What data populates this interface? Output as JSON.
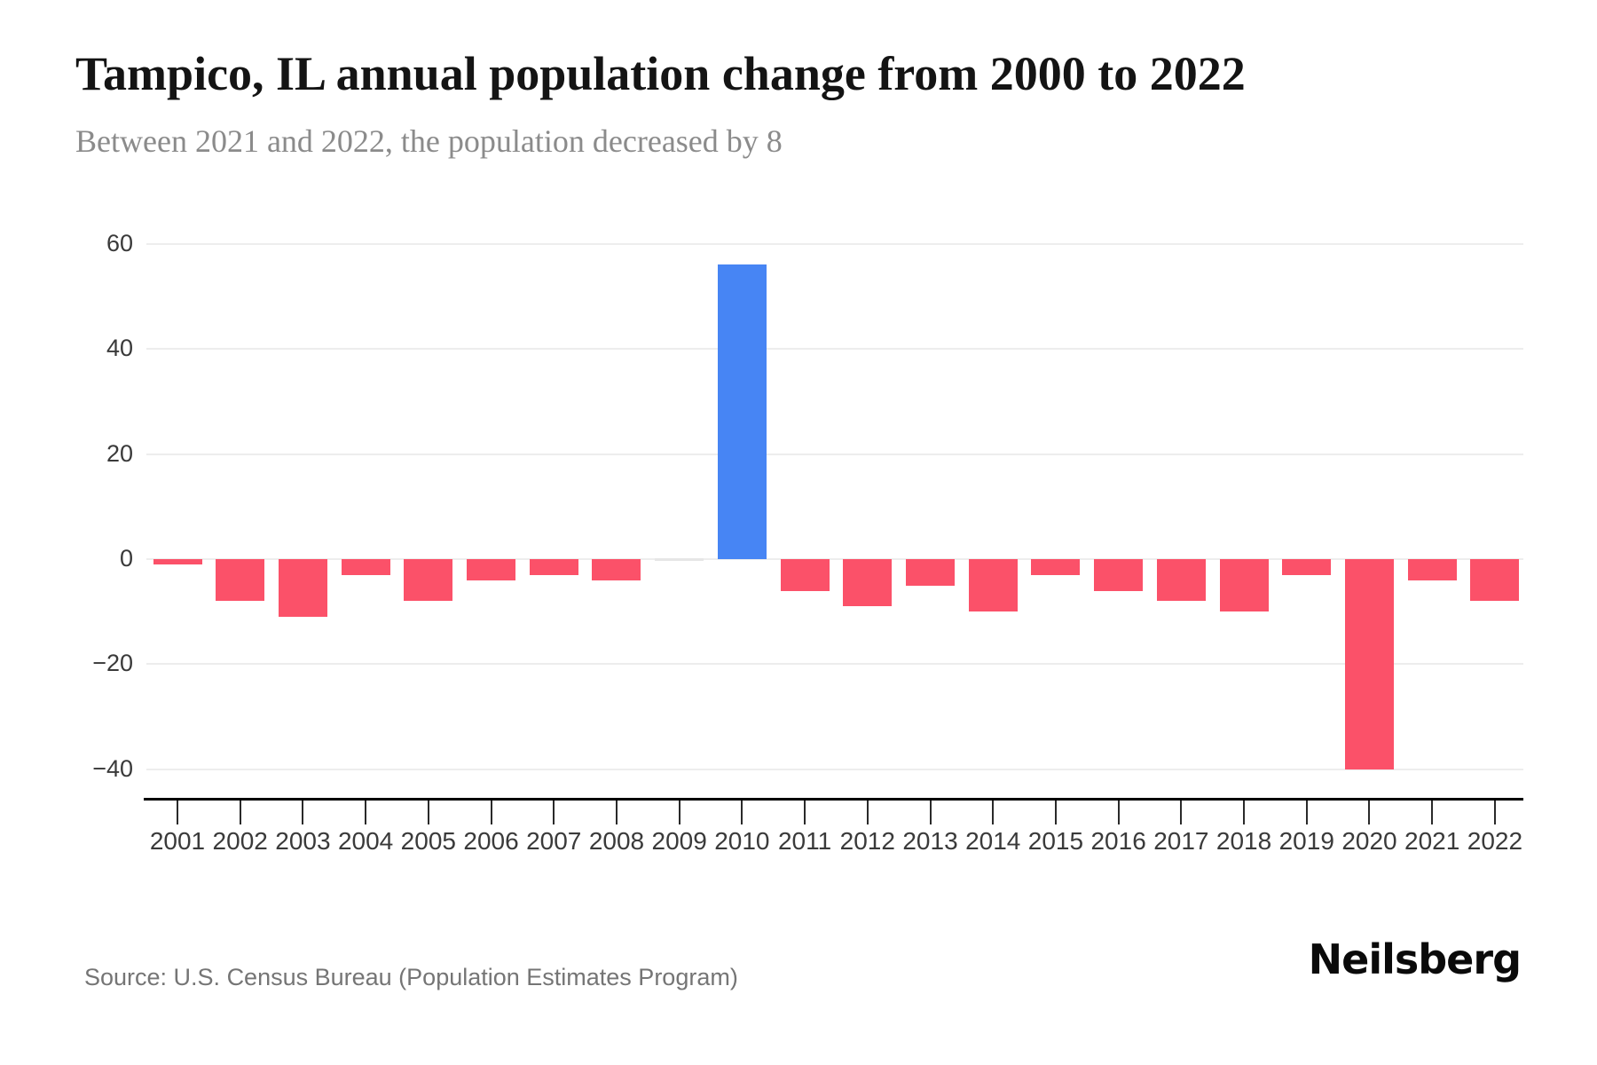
{
  "header": {
    "title": "Tampico, IL annual population change from 2000 to 2022",
    "subtitle": "Between 2021 and 2022, the population decreased by 8"
  },
  "footer": {
    "source": "Source: U.S. Census Bureau (Population Estimates Program)",
    "brand": "Neilsberg"
  },
  "chart_data": {
    "type": "bar",
    "title": "Tampico, IL annual population change from 2000 to 2022",
    "xlabel": "",
    "ylabel": "",
    "categories": [
      "2001",
      "2002",
      "2003",
      "2004",
      "2005",
      "2006",
      "2007",
      "2008",
      "2009",
      "2010",
      "2011",
      "2012",
      "2013",
      "2014",
      "2015",
      "2016",
      "2017",
      "2018",
      "2019",
      "2020",
      "2021",
      "2022"
    ],
    "values": [
      -1,
      -8,
      -11,
      -3,
      -8,
      -4,
      -3,
      -4,
      0,
      56,
      -6,
      -9,
      -5,
      -10,
      -3,
      -6,
      -8,
      -10,
      -3,
      -40,
      -4,
      -8
    ],
    "ylim": [
      -46,
      67
    ],
    "yticks": [
      {
        "value": 60,
        "label": "60"
      },
      {
        "value": 40,
        "label": "40"
      },
      {
        "value": 20,
        "label": "20"
      },
      {
        "value": 0,
        "label": "0"
      },
      {
        "value": -20,
        "label": "−20"
      },
      {
        "value": -40,
        "label": "−40"
      }
    ],
    "grid": true,
    "legend_position": "none",
    "colors": {
      "positive_bar": "#4785f4",
      "negative_bar": "#fb5169",
      "zero_bar": "#e6e6e6",
      "gridline": "#ededed",
      "axis_line": "#000000",
      "tick_text": "#3a3a3a"
    }
  }
}
